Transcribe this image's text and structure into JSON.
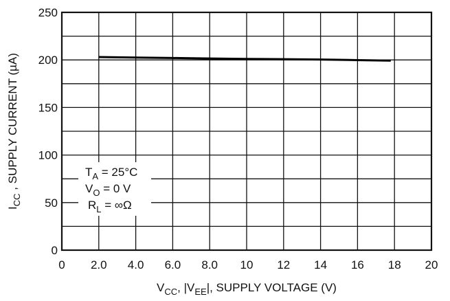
{
  "chart_data": {
    "type": "line",
    "xlabel": {
      "main": "V",
      "sub1": "CC",
      "mid": ", |V",
      "sub2": "EE",
      "tail": "|, SUPPLY VOLTAGE (V)"
    },
    "ylabel": {
      "main": "I",
      "sub": "CC",
      "tail": " , SUPPLY CURRENT (µA)"
    },
    "xlim": [
      0,
      20
    ],
    "ylim": [
      0,
      250
    ],
    "x_ticks": [
      "0",
      "2.0",
      "4.0",
      "6.0",
      "8.0",
      "10",
      "12",
      "14",
      "16",
      "18",
      "20"
    ],
    "y_ticks": [
      "0",
      "50",
      "100",
      "150",
      "200",
      "250"
    ],
    "grid": true,
    "series": [
      {
        "color": "#000000",
        "x": [
          2.0,
          4.0,
          6.0,
          8.0,
          10,
          12,
          14,
          16,
          17.8
        ],
        "y": [
          203,
          202.5,
          202,
          201.5,
          201,
          200.8,
          200.4,
          199.8,
          199.2
        ]
      }
    ],
    "annotations": [
      {
        "main": "T",
        "sub": "A",
        "tail": " = 25°C"
      },
      {
        "main": "V",
        "sub": "O",
        "tail": " = 0 V"
      },
      {
        "main": "R",
        "sub": "L",
        "tail": " = ∞Ω"
      }
    ]
  }
}
